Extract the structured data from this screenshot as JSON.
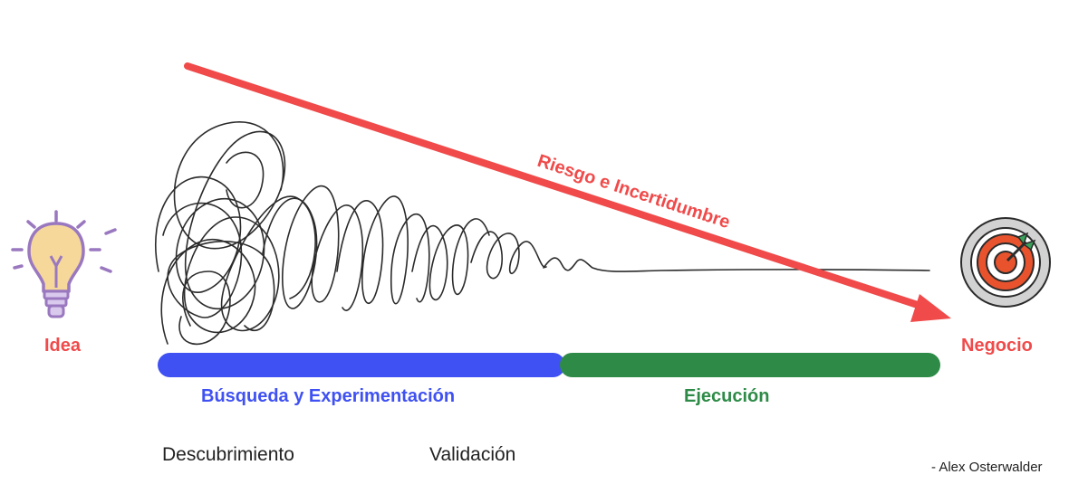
{
  "colors": {
    "risk_arrow": "#f04a4a",
    "search_phase": "#3f51f2",
    "execution_phase": "#2e8b47",
    "scribble": "#2b2b2b",
    "bulb": "#f6d99a",
    "target": "#e8532e"
  },
  "icons": {
    "start": "lightbulb-icon",
    "end": "target-icon"
  },
  "start_label": "Idea",
  "end_label": "Negocio",
  "arrow_label": "Riesgo e Incertidumbre",
  "phases": {
    "search": "Búsqueda y Experimentación",
    "execution": "Ejecución"
  },
  "stages": {
    "discovery": "Descubrimiento",
    "validation": "Validación"
  },
  "credit": "- Alex Osterwalder"
}
